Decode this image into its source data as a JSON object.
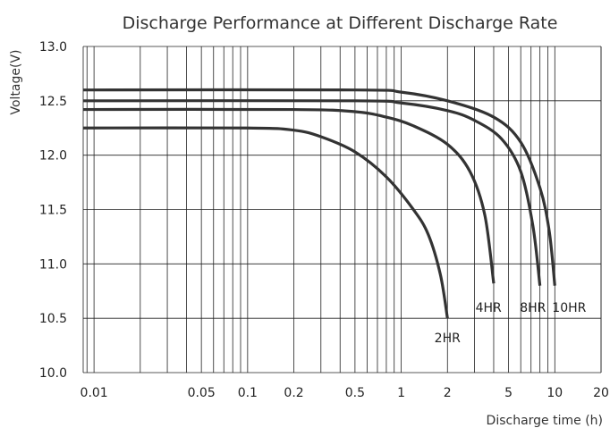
{
  "chart_data": {
    "type": "line",
    "title": "Discharge Performance at Different Discharge Rate",
    "xlabel": "Discharge time (h)",
    "ylabel": "Voltage(V)",
    "xscale": "log",
    "xlim": [
      0.0085,
      20
    ],
    "ylim": [
      10.0,
      13.0
    ],
    "x_ticks": [
      0.01,
      0.05,
      0.1,
      0.2,
      0.5,
      1,
      2,
      5,
      10,
      20
    ],
    "x_tick_labels": [
      "0.01",
      "0.05",
      "0.1",
      "0.2",
      "0.5",
      "1",
      "2",
      "5",
      "10",
      "20"
    ],
    "y_ticks": [
      10.0,
      10.5,
      11.0,
      11.5,
      12.0,
      12.5,
      13.0
    ],
    "y_tick_labels": [
      "10.0",
      "10.5",
      "11.0",
      "11.5",
      "12.0",
      "12.5",
      "13.0"
    ],
    "grid": true,
    "legend": "none",
    "series": [
      {
        "name": "2HR",
        "points": [
          [
            0.0085,
            12.25
          ],
          [
            0.1,
            12.25
          ],
          [
            0.2,
            12.23
          ],
          [
            0.3,
            12.17
          ],
          [
            0.5,
            12.03
          ],
          [
            0.8,
            11.8
          ],
          [
            1.2,
            11.5
          ],
          [
            1.5,
            11.27
          ],
          [
            1.8,
            10.9
          ],
          [
            2.0,
            10.5
          ]
        ]
      },
      {
        "name": "4HR",
        "points": [
          [
            0.0085,
            12.42
          ],
          [
            0.2,
            12.42
          ],
          [
            0.5,
            12.4
          ],
          [
            0.8,
            12.35
          ],
          [
            1.2,
            12.27
          ],
          [
            2.0,
            12.1
          ],
          [
            2.8,
            11.85
          ],
          [
            3.5,
            11.45
          ],
          [
            4.0,
            10.82
          ]
        ]
      },
      {
        "name": "8HR",
        "points": [
          [
            0.0085,
            12.5
          ],
          [
            0.5,
            12.5
          ],
          [
            1.0,
            12.48
          ],
          [
            2.0,
            12.41
          ],
          [
            3.0,
            12.32
          ],
          [
            4.5,
            12.15
          ],
          [
            6.0,
            11.85
          ],
          [
            7.2,
            11.35
          ],
          [
            8.0,
            10.8
          ]
        ]
      },
      {
        "name": "10HR",
        "points": [
          [
            0.0085,
            12.6
          ],
          [
            0.5,
            12.6
          ],
          [
            1.0,
            12.58
          ],
          [
            2.0,
            12.5
          ],
          [
            4.0,
            12.35
          ],
          [
            6.0,
            12.12
          ],
          [
            8.0,
            11.7
          ],
          [
            9.2,
            11.3
          ],
          [
            10.0,
            10.8
          ]
        ]
      }
    ],
    "series_label_positions": [
      {
        "name": "2HR",
        "at": [
          2.0,
          10.28
        ]
      },
      {
        "name": "4HR",
        "at": [
          3.7,
          10.56
        ]
      },
      {
        "name": "8HR",
        "at": [
          7.2,
          10.56
        ]
      },
      {
        "name": "10HR",
        "at": [
          12.4,
          10.56
        ]
      }
    ]
  }
}
